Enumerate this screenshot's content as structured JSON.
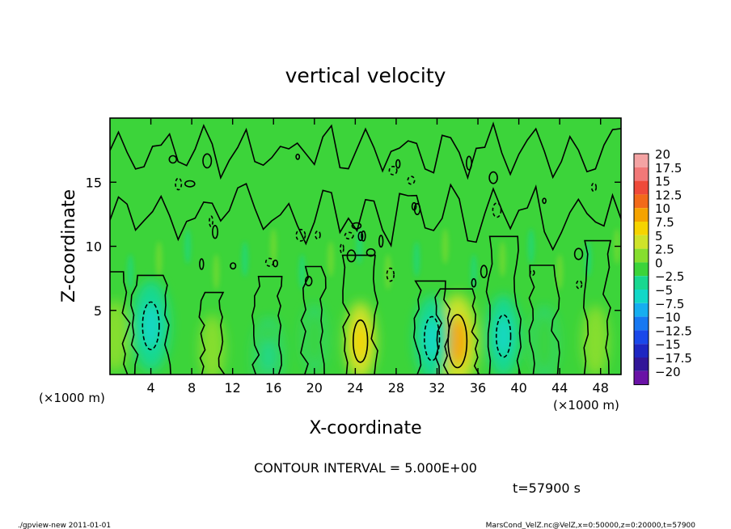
{
  "chart_data": {
    "type": "heatmap",
    "title": "vertical velocity",
    "xlabel": "X-coordinate",
    "ylabel": "Z-coordinate",
    "x_unit_left": "(×1000 m)",
    "x_unit_right": "(×1000 m)",
    "xlim": [
      0,
      50
    ],
    "ylim": [
      0,
      20
    ],
    "x_ticks": [
      4,
      8,
      12,
      16,
      20,
      24,
      28,
      32,
      36,
      40,
      44,
      48
    ],
    "y_ticks": [
      5,
      10,
      15
    ],
    "grid": false,
    "colorbar": {
      "labels": [
        "20",
        "17.5",
        "15",
        "12.5",
        "10",
        "7.5",
        "5",
        "2.5",
        "0",
        "−2.5",
        "−5",
        "−7.5",
        "−10",
        "−12.5",
        "−15",
        "−17.5",
        "−20"
      ],
      "colors": [
        "#f4a3a3",
        "#f27878",
        "#ef4a3a",
        "#f26a1a",
        "#f5a300",
        "#f6d400",
        "#cfe32a",
        "#86de2f",
        "#3cd43a",
        "#18d890",
        "#12d8c8",
        "#16aef0",
        "#1778f2",
        "#1a48ea",
        "#1e26c2",
        "#321698",
        "#6a12a6"
      ]
    },
    "features": [
      {
        "x": 34,
        "z": 2.6,
        "w": 8.5,
        "sign": 1
      },
      {
        "x": 24.5,
        "z": 2.6,
        "w": 5.5,
        "sign": 1
      },
      {
        "x": 47.5,
        "z": 2.6,
        "w": 3.5,
        "sign": 1
      },
      {
        "x": 0.5,
        "z": 3.0,
        "w": 3.5,
        "sign": 1
      },
      {
        "x": 10,
        "z": 2.0,
        "w": 3.0,
        "sign": 1
      },
      {
        "x": 4,
        "z": 3.8,
        "w": -7.0,
        "sign": -1
      },
      {
        "x": 31.5,
        "z": 2.8,
        "w": -6.0,
        "sign": -1
      },
      {
        "x": 38.5,
        "z": 3.0,
        "w": -5.5,
        "sign": -1
      },
      {
        "x": 15.5,
        "z": 1.4,
        "w": -4.5,
        "sign": -1
      },
      {
        "x": 42.5,
        "z": 2.5,
        "w": -3.5,
        "sign": -1
      },
      {
        "x": 20,
        "z": 2.8,
        "w": -2.5,
        "sign": -1
      }
    ],
    "contour_interval": "CONTOUR INTERVAL = 5.000E+00",
    "time_label": "t=57900 s"
  },
  "footer": {
    "left": "./gpview-new   2011-01-01",
    "right": "MarsCond_VelZ.nc@VelZ,x=0:50000,z=0:20000,t=57900"
  }
}
